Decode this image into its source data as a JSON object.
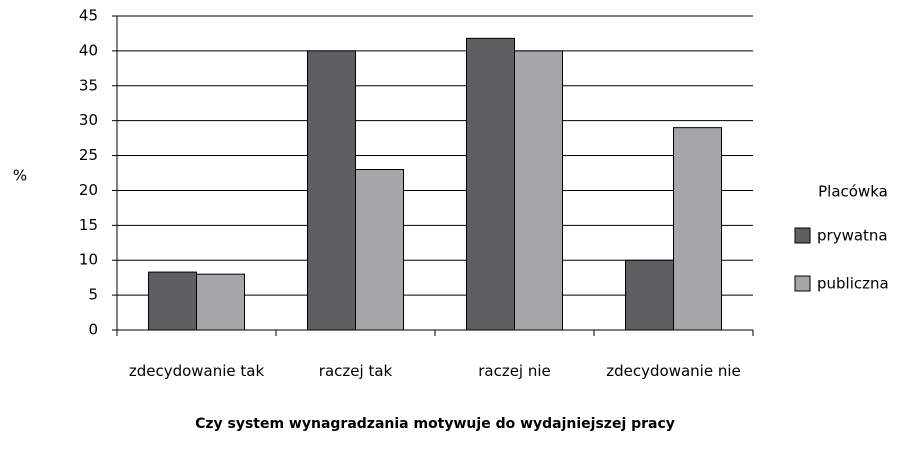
{
  "chart_data": {
    "type": "bar",
    "xlabel": "Czy system wynagradzania motywuje do wydajniejszej pracy",
    "ylabel": "%",
    "categories": [
      "zdecydowanie tak",
      "raczej tak",
      "raczej nie",
      "zdecydowanie nie"
    ],
    "series": [
      {
        "name": "prywatna",
        "color": "#5f5f63",
        "values": [
          8.3,
          40,
          41.8,
          10
        ]
      },
      {
        "name": "publiczna",
        "color": "#a6a6aa",
        "values": [
          8,
          23,
          40,
          29
        ]
      }
    ],
    "legend_title": "Placówka",
    "ylim": [
      0,
      45
    ],
    "yticks": [
      0,
      5,
      10,
      15,
      20,
      25,
      30,
      35,
      40,
      45
    ],
    "grid": true
  }
}
